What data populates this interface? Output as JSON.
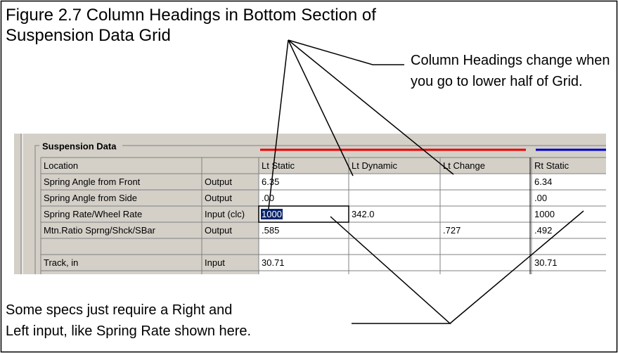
{
  "figure": {
    "title_lines": [
      "Figure 2.7  Column Headings in Bottom Section of",
      "Suspension Data Grid"
    ]
  },
  "callouts": {
    "top": [
      "Column Headings change when",
      "you go to lower half of Grid."
    ],
    "bottom": [
      "Some specs just require a Right and",
      "Left input, like Spring Rate shown here."
    ]
  },
  "grid": {
    "group_label": "Suspension Data",
    "columns": [
      "Location",
      null,
      "Lt Static",
      "Lt Dynamic",
      "Lt Change",
      "Rt Static"
    ],
    "rows": [
      [
        "Spring Angle from Front",
        "Output",
        "6.35",
        null,
        null,
        "6.34"
      ],
      [
        "Spring Angle from Side",
        "Output",
        ".00",
        null,
        null,
        ".00"
      ],
      [
        "Spring Rate/Wheel Rate",
        "Input (clc)",
        "1000",
        "342.0",
        null,
        "1000"
      ],
      [
        "Mtn.Ratio Sprng/Shck/SBar",
        "Output",
        ".585",
        null,
        ".727",
        ".492"
      ],
      [
        null,
        null,
        null,
        null,
        null,
        null
      ],
      [
        "Track, in",
        "Input",
        "30.71",
        null,
        null,
        "30.71"
      ]
    ]
  }
}
